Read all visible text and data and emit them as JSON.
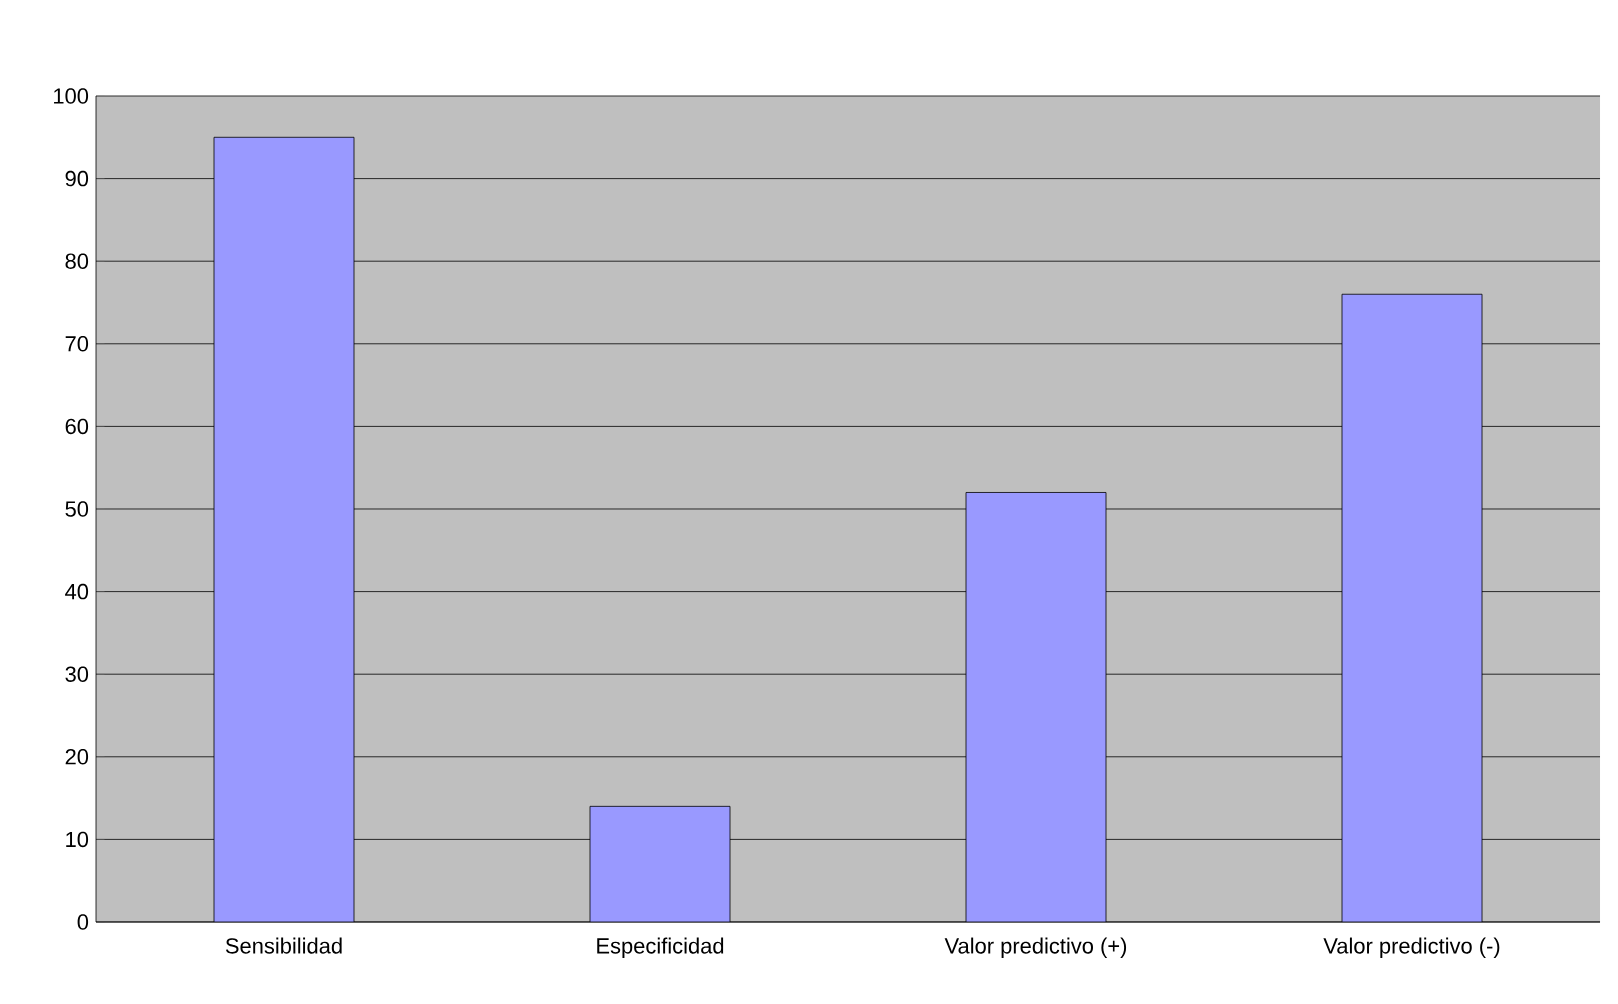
{
  "chart_data": {
    "type": "bar",
    "categories": [
      "Sensibilidad",
      "Especificidad",
      "Valor predictivo (+)",
      "Valor predictivo (-)"
    ],
    "values": [
      95,
      14,
      52,
      76
    ],
    "color": "#9999ff",
    "ylim": [
      0,
      100
    ],
    "yticks": [
      0,
      10,
      20,
      30,
      40,
      50,
      60,
      70,
      80,
      90,
      100
    ],
    "grid": "y"
  }
}
